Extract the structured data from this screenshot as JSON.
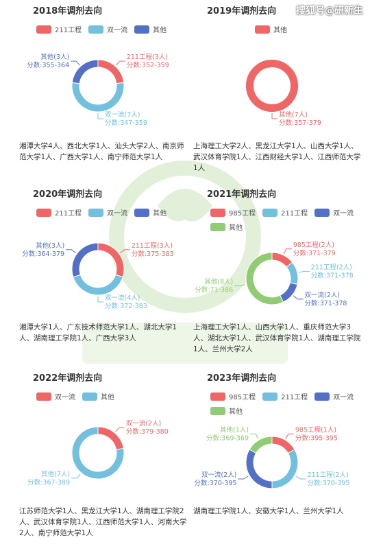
{
  "watermark": "搜狐号@研新生",
  "colors": {
    "211工程": "#ee6666",
    "双一流": "#73c0de",
    "其他": "#5470c6",
    "985工程": "#ee6666"
  },
  "charts": [
    {
      "title": "2018年调剂去向",
      "legend": [
        {
          "name": "211工程",
          "color": "#ee6666"
        },
        {
          "name": "双一流",
          "color": "#73c0de"
        },
        {
          "name": "其他",
          "color": "#5470c6"
        }
      ],
      "slices": [
        {
          "name": "211工程",
          "label": "211工程(3人)",
          "score": "分数:352-359",
          "value": 3,
          "color": "#ee6666"
        },
        {
          "name": "双一流",
          "label": "双一流(7人)",
          "score": "分数:347-359",
          "value": 7,
          "color": "#73c0de"
        },
        {
          "name": "其他",
          "label": "其他(3人)",
          "score": "分数:355-364",
          "value": 3,
          "color": "#5470c6"
        }
      ],
      "note": "湘潭大学4人、西北大学1人、汕头大学2人、南京师范大学1人、广西大学1人、南宁师范大学1人"
    },
    {
      "title": "2019年调剂去向",
      "legend": [
        {
          "name": "其他",
          "color": "#ee6666"
        }
      ],
      "slices": [
        {
          "name": "其他",
          "label": "其他(7人)",
          "score": "分数:357-379",
          "value": 7,
          "color": "#ee6666"
        }
      ],
      "note": "上海理工大学2人、黑龙江大学1人、山西大学1人、武汉体育学院1人、江西财经大学1人、江西师范大学1人"
    },
    {
      "title": "2020年调剂去向",
      "legend": [
        {
          "name": "211工程",
          "color": "#ee6666"
        },
        {
          "name": "双一流",
          "color": "#73c0de"
        },
        {
          "name": "其他",
          "color": "#5470c6"
        }
      ],
      "slices": [
        {
          "name": "211工程",
          "label": "211工程(3人)",
          "score": "分数:375-383",
          "value": 3,
          "color": "#ee6666"
        },
        {
          "name": "双一流",
          "label": "双一流(4人)",
          "score": "分数:372-383",
          "value": 4,
          "color": "#73c0de"
        },
        {
          "name": "其他",
          "label": "其他(3人)",
          "score": "分数:364-379",
          "value": 3,
          "color": "#5470c6"
        }
      ],
      "note": "湘潭大学1人、广东技术师范大学1人、湖北大学1人、湖南理工学院1人、广西大学3人"
    },
    {
      "title": "2021年调剂去向",
      "legend": [
        {
          "name": "985工程",
          "color": "#ee6666"
        },
        {
          "name": "211工程",
          "color": "#73c0de"
        },
        {
          "name": "双一流",
          "color": "#5470c6"
        },
        {
          "name": "其他",
          "color": "#91cc75"
        }
      ],
      "slices": [
        {
          "name": "985工程",
          "label": "985工程(2人)",
          "score": "分数:371-379",
          "value": 2,
          "color": "#ee6666"
        },
        {
          "name": "211工程",
          "label": "211工程(2人)",
          "score": "分数:371-378",
          "value": 2,
          "color": "#73c0de"
        },
        {
          "name": "双一流",
          "label": "双一流(2人)",
          "score": "分数:371-378",
          "value": 2,
          "color": "#5470c6"
        },
        {
          "name": "其他",
          "label": "其他(8人)",
          "score": "分数:71-386",
          "value": 8,
          "color": "#91cc75"
        }
      ],
      "note": "上海理工大学1人、山西大学1人、重庆师范大学3人、湖北大学1人、武汉体育学院1人、湖南理工学院1人、兰州大学2人"
    },
    {
      "title": "2022年调剂去向",
      "legend": [
        {
          "name": "双一流",
          "color": "#ee6666"
        },
        {
          "name": "其他",
          "color": "#73c0de"
        }
      ],
      "slices": [
        {
          "name": "双一流",
          "label": "双一流(2人)",
          "score": "分数:379-380",
          "value": 2,
          "color": "#ee6666"
        },
        {
          "name": "其他",
          "label": "其他(7人)",
          "score": "分数:367-389",
          "value": 7,
          "color": "#73c0de"
        }
      ],
      "note": "江苏师范大学1人、黑龙江大学1人、湖南理工学院2人、武汉体育学院1人、江西师范大学1人、河南大学2人、南宁师范大学1人"
    },
    {
      "title": "2023年调剂去向",
      "legend": [
        {
          "name": "985工程",
          "color": "#ee6666"
        },
        {
          "name": "211工程",
          "color": "#73c0de"
        },
        {
          "name": "双一流",
          "color": "#5470c6"
        },
        {
          "name": "其他",
          "color": "#91cc75"
        }
      ],
      "slices": [
        {
          "name": "985工程",
          "label": "985工程(1人)",
          "score": "分数:395-395",
          "value": 1,
          "color": "#ee6666"
        },
        {
          "name": "211工程",
          "label": "211工程(2人)",
          "score": "分数:370-395",
          "value": 2,
          "color": "#73c0de"
        },
        {
          "name": "双一流",
          "label": "双一流(2人)",
          "score": "分数:370-395",
          "value": 2,
          "color": "#5470c6"
        },
        {
          "name": "其他",
          "label": "其他(1人)",
          "score": "分数:369-369",
          "value": 1,
          "color": "#91cc75"
        }
      ],
      "note": "湖南理工学院1人、安徽大学1人、兰州大学1人"
    }
  ],
  "chart_data": [
    {
      "type": "pie",
      "title": "2018年调剂去向",
      "categories": [
        "211工程",
        "双一流",
        "其他"
      ],
      "values": [
        3,
        7,
        3
      ]
    },
    {
      "type": "pie",
      "title": "2019年调剂去向",
      "categories": [
        "其他"
      ],
      "values": [
        7
      ]
    },
    {
      "type": "pie",
      "title": "2020年调剂去向",
      "categories": [
        "211工程",
        "双一流",
        "其他"
      ],
      "values": [
        3,
        4,
        3
      ]
    },
    {
      "type": "pie",
      "title": "2021年调剂去向",
      "categories": [
        "985工程",
        "211工程",
        "双一流",
        "其他"
      ],
      "values": [
        2,
        2,
        2,
        8
      ]
    },
    {
      "type": "pie",
      "title": "2022年调剂去向",
      "categories": [
        "双一流",
        "其他"
      ],
      "values": [
        2,
        7
      ]
    },
    {
      "type": "pie",
      "title": "2023年调剂去向",
      "categories": [
        "985工程",
        "211工程",
        "双一流",
        "其他"
      ],
      "values": [
        1,
        2,
        2,
        1
      ]
    }
  ]
}
